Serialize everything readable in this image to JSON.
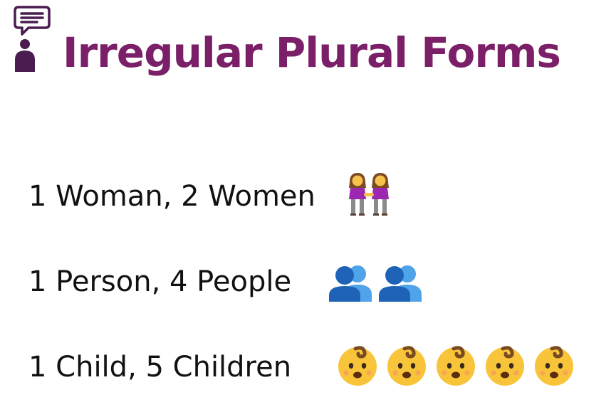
{
  "header": {
    "title": "Irregular Plural Forms",
    "logo_icon": "speaking-person-icon",
    "title_color": "#7a1f68",
    "logo_color": "#4a1c50"
  },
  "rows": [
    {
      "text": "1 Woman, 2 Women",
      "icon": "two-women-holding-hands-icon",
      "icon_count": 1
    },
    {
      "text": "1 Person, 4 People",
      "icon": "busts-in-silhouette-icon",
      "icon_count": 2
    },
    {
      "text": "1 Child, 5 Children",
      "icon": "baby-icon",
      "icon_count": 5
    }
  ]
}
